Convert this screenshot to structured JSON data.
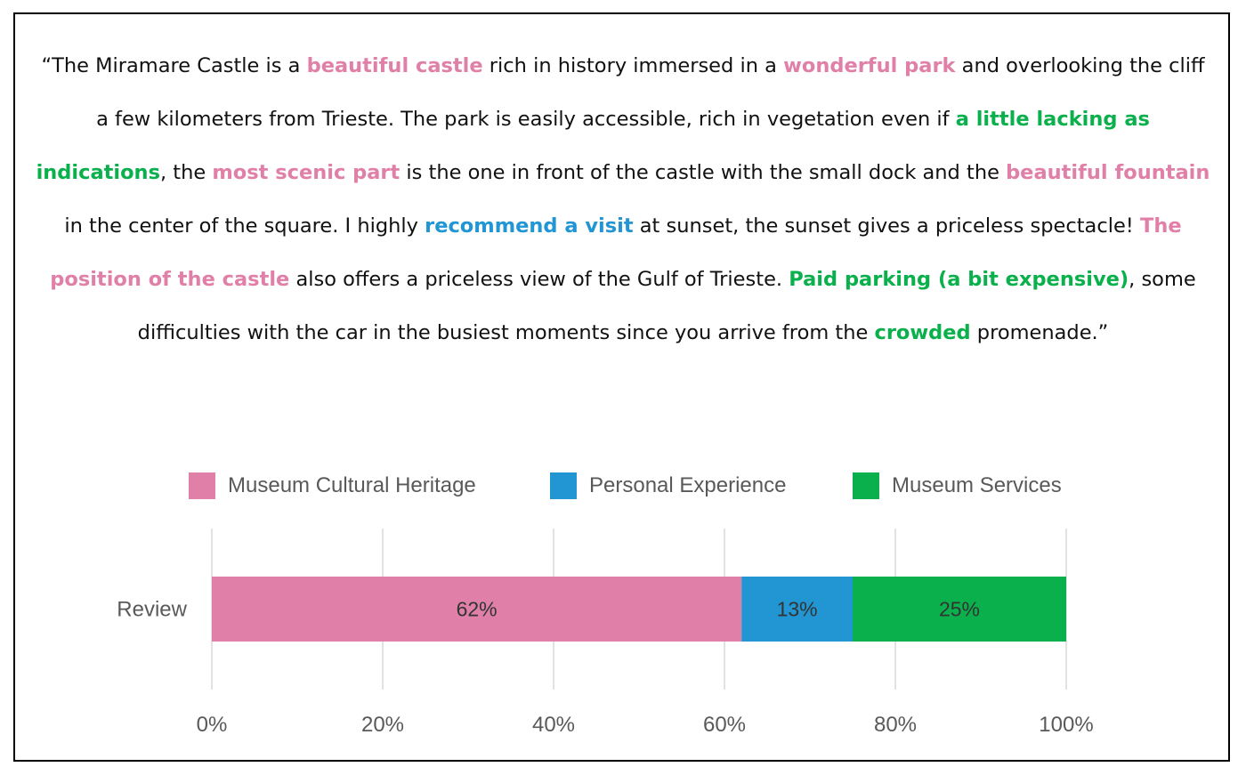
{
  "review": {
    "segments": [
      {
        "text": "“The Miramare Castle is a ",
        "cat": null
      },
      {
        "text": "beautiful castle",
        "cat": "heritage"
      },
      {
        "text": " rich in history immersed in a ",
        "cat": null
      },
      {
        "text": "wonderful park",
        "cat": "heritage"
      },
      {
        "text": " and overlooking the cliff a few kilometers from Trieste. The park is easily accessible, rich in vegetation even if ",
        "cat": null
      },
      {
        "text": "a little lacking as indications",
        "cat": "services"
      },
      {
        "text": ", the ",
        "cat": null
      },
      {
        "text": "most scenic part",
        "cat": "heritage"
      },
      {
        "text": " is the one in front of the castle with the small dock and the ",
        "cat": null
      },
      {
        "text": "beautiful fountain",
        "cat": "heritage"
      },
      {
        "text": " in the center of the square. I highly ",
        "cat": null
      },
      {
        "text": "recommend a visit",
        "cat": "experience"
      },
      {
        "text": " at sunset, the sunset gives a priceless spectacle! ",
        "cat": null
      },
      {
        "text": "The position of the castle",
        "cat": "heritage"
      },
      {
        "text": " also offers a priceless view of the Gulf of Trieste. ",
        "cat": null
      },
      {
        "text": "Paid parking (a bit expensive)",
        "cat": "services"
      },
      {
        "text": ", some difficulties with the car in the busiest moments since you arrive from the ",
        "cat": null
      },
      {
        "text": "crowded",
        "cat": "services"
      },
      {
        "text": " promenade.”",
        "cat": null
      }
    ]
  },
  "colors": {
    "heritage": "#e07fa7",
    "experience": "#2196d3",
    "services": "#0ab04b",
    "grid": "#d9d9d9"
  },
  "legend": [
    {
      "label": "Museum Cultural Heritage",
      "key": "heritage"
    },
    {
      "label": "Personal Experience",
      "key": "experience"
    },
    {
      "label": "Museum Services",
      "key": "services"
    }
  ],
  "chart_data": {
    "type": "bar",
    "orientation": "horizontal",
    "stacked": true,
    "categories": [
      "Review"
    ],
    "series": [
      {
        "name": "Museum Cultural Heritage",
        "key": "heritage",
        "values": [
          62
        ],
        "label": "62%"
      },
      {
        "name": "Personal Experience",
        "key": "experience",
        "values": [
          13
        ],
        "label": "13%"
      },
      {
        "name": "Museum Services",
        "key": "services",
        "values": [
          25
        ],
        "label": "25%"
      }
    ],
    "xlim": [
      0,
      100
    ],
    "xticks": [
      0,
      20,
      40,
      60,
      80,
      100
    ],
    "xtick_labels": [
      "0%",
      "20%",
      "40%",
      "60%",
      "80%",
      "100%"
    ],
    "grid": true,
    "legend_position": "top"
  }
}
